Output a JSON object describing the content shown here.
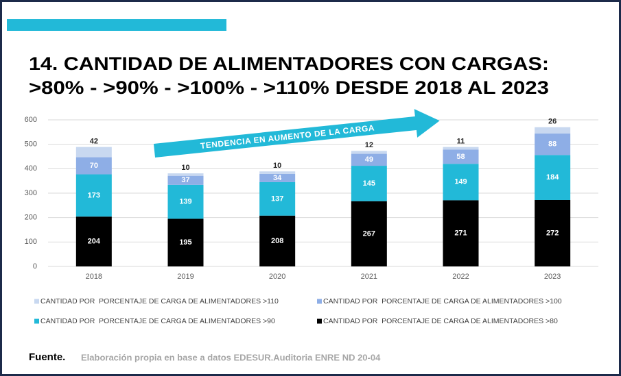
{
  "chart_data": {
    "type": "stacked_bar",
    "title_lines": [
      "14. CANTIDAD DE ALIMENTADORES CON CARGAS:",
      ">80% - >90% - >100% - >110% DESDE 2018 AL 2023"
    ],
    "annotation": "TENDENCIA EN AUMENTO DE LA CARGA",
    "categories": [
      "2018",
      "2019",
      "2020",
      "2021",
      "2022",
      "2023"
    ],
    "series": [
      {
        "name": "CANTIDAD POR  PORCENTAJE DE CARGA DE ALIMENTADORES >110",
        "color": "#c8d8f0",
        "values": [
          42,
          10,
          10,
          12,
          11,
          26
        ]
      },
      {
        "name": "CANTIDAD POR  PORCENTAJE DE CARGA DE ALIMENTADORES >100",
        "color": "#8eaee6",
        "values": [
          70,
          37,
          34,
          49,
          58,
          88
        ]
      },
      {
        "name": "CANTIDAD POR  PORCENTAJE DE CARGA DE ALIMENTADORES >90",
        "color": "#22b9d8",
        "values": [
          173,
          139,
          137,
          145,
          149,
          184
        ]
      },
      {
        "name": "CANTIDAD POR  PORCENTAJE DE CARGA DE ALIMENTADORES >80",
        "color": "#000000",
        "values": [
          204,
          195,
          208,
          267,
          271,
          272
        ]
      }
    ],
    "ylim": [
      0,
      600
    ],
    "yticks": [
      0,
      100,
      200,
      300,
      400,
      500,
      600
    ],
    "grid": true,
    "source_label": "Fuente.",
    "source_text": "Elaboración propia en base a datos EDESUR.Auditoria ENRE ND 20-04"
  }
}
